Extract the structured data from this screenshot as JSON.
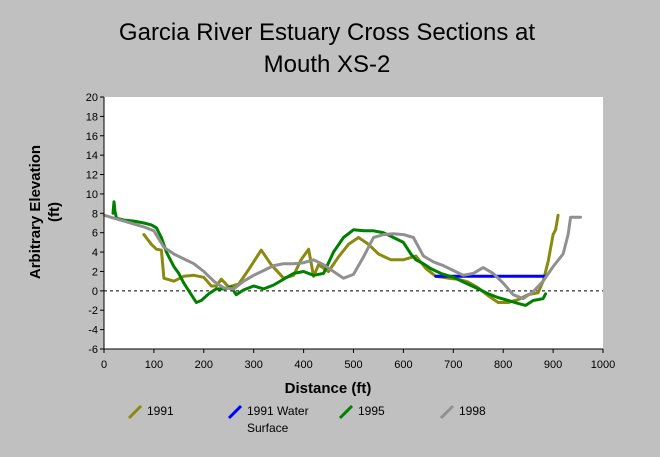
{
  "chart_data": {
    "type": "line",
    "title": [
      "Garcia River Estuary Cross Sections at",
      "Mouth XS-2"
    ],
    "xlabel": "Distance (ft)",
    "ylabel": [
      "Arbitrary Elevation",
      "(ft)"
    ],
    "xlim": [
      0,
      1000
    ],
    "ylim": [
      -6,
      20
    ],
    "xticks": [
      0,
      100,
      200,
      300,
      400,
      500,
      600,
      700,
      800,
      900,
      1000
    ],
    "yticks": [
      -6,
      -4,
      -2,
      0,
      2,
      4,
      6,
      8,
      10,
      12,
      14,
      16,
      18,
      20
    ],
    "zero_line": "dashed",
    "grid": false,
    "legend_position": "bottom",
    "series": [
      {
        "name": "1991",
        "color": "#8b8a10",
        "x": [
          80,
          95,
          105,
          115,
          120,
          140,
          160,
          180,
          200,
          215,
          225,
          235,
          250,
          270,
          290,
          300,
          315,
          335,
          360,
          380,
          395,
          410,
          420,
          430,
          450,
          470,
          490,
          510,
          530,
          550,
          575,
          600,
          625,
          645,
          665,
          690,
          710,
          730,
          750,
          770,
          790,
          810,
          830,
          850,
          870,
          880,
          890,
          900,
          905,
          910
        ],
        "y": [
          5.8,
          4.8,
          4.3,
          4.2,
          1.3,
          1.0,
          1.5,
          1.6,
          1.4,
          0.5,
          0.5,
          1.2,
          0.4,
          0.7,
          2.2,
          3.0,
          4.2,
          2.7,
          1.3,
          1.6,
          3.2,
          4.3,
          1.5,
          2.7,
          2.0,
          3.5,
          4.8,
          5.5,
          4.8,
          3.8,
          3.2,
          3.2,
          3.6,
          2.3,
          1.5,
          1.3,
          1.2,
          0.9,
          0.3,
          -0.5,
          -1.2,
          -1.2,
          -0.9,
          -0.4,
          -0.2,
          1.0,
          3.0,
          5.8,
          6.3,
          7.8
        ]
      },
      {
        "name": "1991 Water Surface",
        "color": "#0000ff",
        "x": [
          665,
          885
        ],
        "y": [
          1.5,
          1.5
        ]
      },
      {
        "name": "1995",
        "color": "#008000",
        "x": [
          18,
          20,
          22,
          25,
          40,
          60,
          80,
          95,
          105,
          115,
          125,
          140,
          150,
          160,
          170,
          185,
          195,
          210,
          225,
          240,
          255,
          265,
          280,
          300,
          320,
          340,
          360,
          380,
          400,
          420,
          440,
          460,
          480,
          500,
          520,
          540,
          560,
          580,
          600,
          615,
          625,
          640,
          655,
          675,
          700,
          725,
          750,
          770,
          790,
          810,
          830,
          845,
          860,
          880,
          885
        ],
        "y": [
          8.0,
          9.2,
          8.2,
          7.5,
          7.3,
          7.2,
          7.0,
          6.8,
          6.5,
          5.5,
          4.0,
          2.5,
          1.8,
          0.8,
          0.0,
          -1.2,
          -1.0,
          -0.3,
          0.2,
          0.2,
          0.4,
          -0.4,
          0.1,
          0.5,
          0.2,
          0.6,
          1.2,
          1.8,
          2.0,
          1.6,
          1.8,
          4.0,
          5.5,
          6.3,
          6.2,
          6.2,
          6.0,
          5.5,
          5.0,
          3.8,
          3.2,
          2.8,
          2.3,
          1.8,
          1.4,
          0.8,
          0.2,
          -0.3,
          -0.7,
          -1.0,
          -1.3,
          -1.5,
          -1.0,
          -0.8,
          -0.3
        ]
      },
      {
        "name": "1998",
        "color": "#909090",
        "x": [
          0,
          20,
          40,
          60,
          80,
          100,
          120,
          140,
          160,
          180,
          200,
          220,
          240,
          260,
          280,
          300,
          320,
          340,
          360,
          380,
          400,
          420,
          440,
          460,
          480,
          500,
          520,
          540,
          560,
          580,
          600,
          620,
          640,
          660,
          680,
          700,
          720,
          740,
          760,
          780,
          800,
          820,
          840,
          860,
          880,
          900,
          920,
          930,
          935,
          955
        ],
        "y": [
          7.8,
          7.5,
          7.2,
          6.9,
          6.6,
          6.2,
          4.5,
          3.8,
          3.3,
          2.8,
          2.0,
          1.0,
          0.3,
          0.2,
          1.0,
          1.6,
          2.1,
          2.6,
          2.8,
          2.8,
          2.9,
          3.2,
          2.7,
          2.0,
          1.3,
          1.7,
          3.5,
          5.5,
          5.8,
          5.9,
          5.8,
          5.5,
          3.6,
          3.0,
          2.6,
          2.1,
          1.6,
          1.8,
          2.4,
          1.8,
          0.8,
          -0.4,
          -0.8,
          -0.1,
          1.0,
          2.5,
          3.8,
          5.8,
          7.6,
          7.6
        ]
      }
    ]
  }
}
